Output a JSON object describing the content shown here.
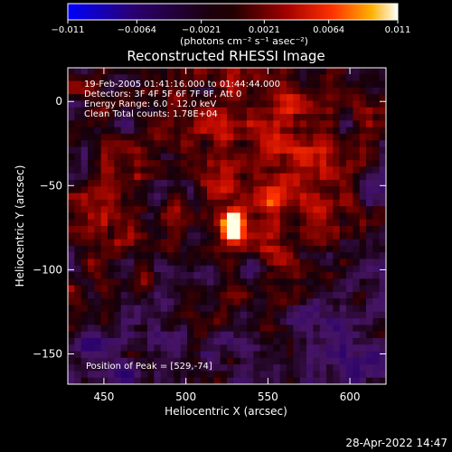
{
  "chart_data": {
    "type": "heatmap",
    "title": "Reconstructed RHESSI Image",
    "xlabel": "Heliocentric X (arcsec)",
    "ylabel": "Heliocentric Y (arcsec)",
    "xlim": [
      428,
      622
    ],
    "ylim": [
      -168,
      20
    ],
    "x_ticks": [
      450,
      500,
      550,
      600
    ],
    "y_ticks": [
      0,
      -50,
      -100,
      -150
    ],
    "colorbar": {
      "min": -0.011,
      "max": 0.011,
      "tick_values": [
        -0.011,
        -0.0064,
        -0.0021,
        0.0021,
        0.0064,
        0.011
      ],
      "tick_labels": [
        "-0.011",
        "-0.0064",
        "-0.0021",
        "0.0021",
        "0.0064",
        "0.011"
      ],
      "label": "(photons cm⁻² s⁻¹ asec⁻²)"
    },
    "annotations": [
      "19-Feb-2005 01:41:16.000 to 01:44:44.000",
      "Detectors: 3F 4F 5F 6F 7F 8F, Att 0",
      "Energy Range: 6.0 - 12.0 keV",
      "Clean    Total counts: 1.78E+04"
    ],
    "peak_label": "Position of Peak = [529,-74]",
    "peak": {
      "x": 529,
      "y": -74,
      "value": 0.011
    }
  },
  "footer": {
    "timestamp": "28-Apr-2022 14:47"
  }
}
